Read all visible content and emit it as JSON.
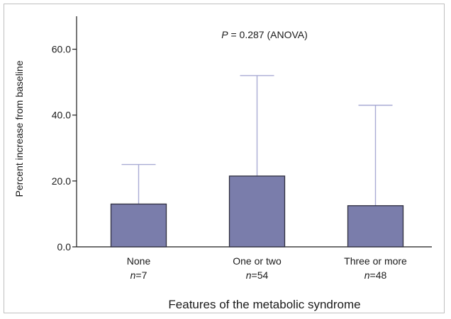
{
  "chart_data": {
    "type": "bar",
    "categories": [
      "None",
      "One or two",
      "Three or more"
    ],
    "sample_sizes": [
      "7",
      "54",
      "48"
    ],
    "n_prefix": "n",
    "values": [
      13.0,
      21.5,
      12.5
    ],
    "error_upper": [
      25.0,
      52.0,
      43.0
    ],
    "xlabel": "Features of the metabolic syndrome",
    "ylabel": "Percent increase from baseline",
    "ylim": [
      0,
      70
    ],
    "yticks": [
      0,
      20,
      40,
      60
    ],
    "ytick_labels": [
      "0.0",
      "20.0",
      "40.0",
      "60.0"
    ],
    "annotation": {
      "p_symbol": "P",
      "p_value_text": " = 0.287 (ANOVA)"
    },
    "colors": {
      "bar_fill": "#7a7dab",
      "bar_stroke": "#2e2e3e",
      "error_bar": "#a9abd4",
      "axis": "#1a1a1a"
    }
  }
}
